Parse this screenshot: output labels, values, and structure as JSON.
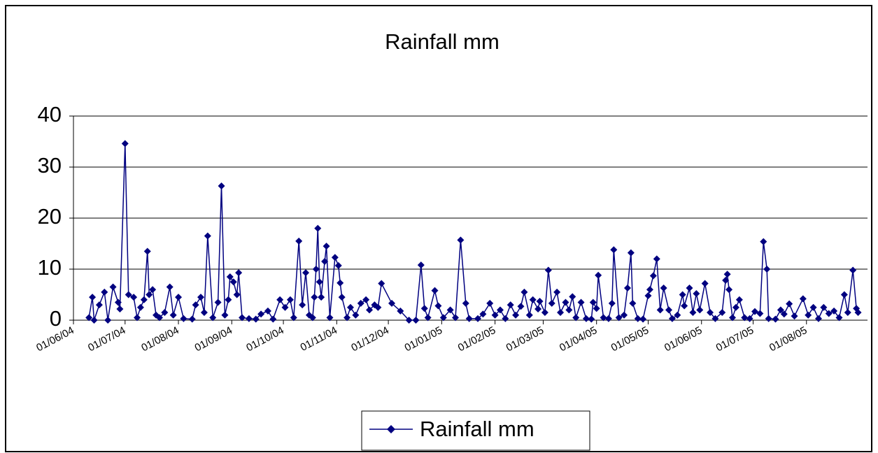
{
  "chart_data": {
    "type": "line",
    "title": "Rainfall mm",
    "x": [
      "10/06/04",
      "12/06/04",
      "13/06/04",
      "16/06/04",
      "19/06/04",
      "21/06/04",
      "24/06/04",
      "27/06/04",
      "28/06/04",
      "01/07/04",
      "03/07/04",
      "06/07/04",
      "08/07/04",
      "10/07/04",
      "12/07/04",
      "14/07/04",
      "15/07/04",
      "17/07/04",
      "19/07/04",
      "21/07/04",
      "24/07/04",
      "27/07/04",
      "29/07/04",
      "01/08/04",
      "04/08/04",
      "09/08/04",
      "11/08/04",
      "14/08/04",
      "16/08/04",
      "18/08/04",
      "21/08/04",
      "24/08/04",
      "26/08/04",
      "28/08/04",
      "30/08/04",
      "31/08/04",
      "02/09/04",
      "04/09/04",
      "05/09/04",
      "07/09/04",
      "11/09/04",
      "15/09/04",
      "18/09/04",
      "22/09/04",
      "25/09/04",
      "29/09/04",
      "02/10/04",
      "05/10/04",
      "07/10/04",
      "10/10/04",
      "12/10/04",
      "14/10/04",
      "16/10/04",
      "18/10/04",
      "19/10/04",
      "20/10/04",
      "21/10/04",
      "22/10/04",
      "23/10/04",
      "25/10/04",
      "26/10/04",
      "28/10/04",
      "31/10/04",
      "02/11/04",
      "03/11/04",
      "04/11/04",
      "07/11/04",
      "09/11/04",
      "12/11/04",
      "15/11/04",
      "18/11/04",
      "20/11/04",
      "23/11/04",
      "25/11/04",
      "27/11/04",
      "03/12/04",
      "08/12/04",
      "13/12/04",
      "17/12/04",
      "20/12/04",
      "22/12/04",
      "24/12/04",
      "28/12/04",
      "30/12/04",
      "02/01/05",
      "06/01/05",
      "09/01/05",
      "12/01/05",
      "15/01/05",
      "17/01/05",
      "22/01/05",
      "25/01/05",
      "29/01/05",
      "01/02/05",
      "04/02/05",
      "07/02/05",
      "10/02/05",
      "13/02/05",
      "16/02/05",
      "18/02/05",
      "21/02/05",
      "23/02/05",
      "26/02/05",
      "27/02/05",
      "02/03/05",
      "04/03/05",
      "06/03/05",
      "09/03/05",
      "11/03/05",
      "14/03/05",
      "16/03/05",
      "18/03/05",
      "20/03/05",
      "23/03/05",
      "26/03/05",
      "29/03/05",
      "30/03/05",
      "01/04/05",
      "02/04/05",
      "05/04/05",
      "08/04/05",
      "10/04/05",
      "11/04/05",
      "14/04/05",
      "17/04/05",
      "19/04/05",
      "21/04/05",
      "22/04/05",
      "25/04/05",
      "28/04/05",
      "01/05/05",
      "02/05/05",
      "04/05/05",
      "06/05/05",
      "08/05/05",
      "10/05/05",
      "13/05/05",
      "15/05/05",
      "18/05/05",
      "21/05/05",
      "22/05/05",
      "25/05/05",
      "27/05/05",
      "29/05/05",
      "31/05/05",
      "03/06/05",
      "06/06/05",
      "09/06/05",
      "13/06/05",
      "15/06/05",
      "16/06/05",
      "17/06/05",
      "19/06/05",
      "21/06/05",
      "23/06/05",
      "26/06/05",
      "29/06/05",
      "02/07/05",
      "05/07/05",
      "07/07/05",
      "09/07/05",
      "10/07/05",
      "14/07/05",
      "17/07/05",
      "19/07/05",
      "22/07/05",
      "25/07/05",
      "30/07/05",
      "02/08/05",
      "05/08/05",
      "08/08/05",
      "11/08/05",
      "14/08/05",
      "17/08/05",
      "20/08/05",
      "23/08/05",
      "25/08/05",
      "28/08/05",
      "30/08/05",
      "31/08/05"
    ],
    "series": [
      {
        "name": "Rainfall mm",
        "color": "#000080",
        "values": [
          0.5,
          4.5,
          0,
          3,
          5.5,
          0,
          6.5,
          3.5,
          2.2,
          34.6,
          5,
          4.5,
          0.5,
          2.5,
          4,
          13.5,
          5,
          6,
          1,
          0.5,
          1.5,
          6.5,
          1,
          4.5,
          0.3,
          0.2,
          3,
          4.5,
          1.5,
          16.5,
          0.5,
          3.5,
          26.3,
          1,
          4,
          8.5,
          7.5,
          5,
          9.3,
          0.5,
          0.3,
          0.2,
          1.2,
          1.8,
          0.2,
          4,
          2.5,
          4,
          0.5,
          15.5,
          3,
          9.3,
          1,
          0.5,
          4.5,
          10,
          18,
          7.5,
          4.5,
          11.5,
          14.5,
          0.5,
          12.3,
          10.7,
          7.3,
          4.5,
          0.5,
          2.5,
          1,
          3.3,
          4,
          2,
          3,
          2.5,
          7.2,
          3.3,
          1.8,
          0,
          0,
          10.8,
          2.3,
          0.5,
          5.8,
          2.8,
          0.5,
          2,
          0.5,
          15.7,
          3.3,
          0.3,
          0.3,
          1.2,
          3.3,
          1,
          2,
          0.3,
          3,
          1,
          2.7,
          5.5,
          1,
          4,
          2.2,
          3.7,
          1.5,
          9.8,
          3.3,
          5.5,
          1.5,
          3.5,
          2,
          4.6,
          0.5,
          3.5,
          0.3,
          0.2,
          3.5,
          2.3,
          8.8,
          0.5,
          0.3,
          3.3,
          13.8,
          0.5,
          1,
          6.3,
          13.2,
          3.3,
          0.3,
          0.2,
          4.8,
          6,
          8.7,
          12,
          2,
          6.3,
          2,
          0.3,
          1,
          5,
          2.8,
          6.3,
          1.5,
          5.2,
          2,
          7.2,
          1.5,
          0.3,
          1.5,
          7.8,
          9,
          6,
          0.5,
          2.5,
          4,
          0.5,
          0.3,
          1.7,
          1.3,
          15.4,
          10,
          0.3,
          0.2,
          2,
          1.2,
          3.2,
          0.8,
          4.2,
          1,
          2.5,
          0.3,
          2.5,
          1.3,
          1.8,
          0.5,
          5,
          1.5,
          9.8,
          2.3,
          1.5
        ]
      }
    ],
    "xlim": [
      "01/06/04",
      "01/09/05"
    ],
    "xticks": [
      "01/06/04",
      "01/07/04",
      "01/08/04",
      "01/09/04",
      "01/10/04",
      "01/11/04",
      "01/12/04",
      "01/01/05",
      "01/02/05",
      "01/03/05",
      "01/04/05",
      "01/05/05",
      "01/06/05",
      "01/07/05",
      "01/08/05"
    ],
    "ylim": [
      0,
      40
    ],
    "yticks": [
      0,
      10,
      20,
      30,
      40
    ],
    "grid": true,
    "legend": "bottom",
    "marker": "diamond"
  }
}
